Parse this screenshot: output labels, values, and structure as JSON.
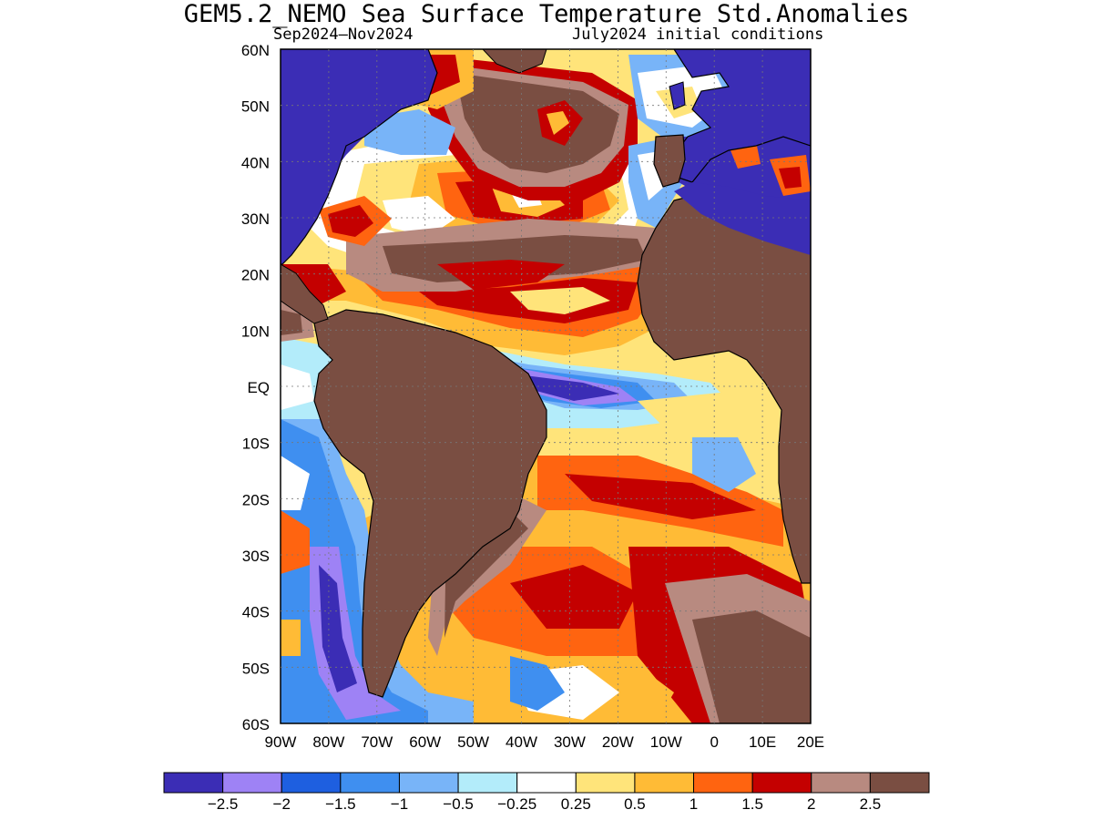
{
  "title": "GEM5.2_NEMO Sea Surface Temperature Std.Anomalies",
  "subtitle_left": "Sep2024—Nov2024",
  "subtitle_right": "July2024 initial conditions",
  "map": {
    "region": "Atlantic Ocean",
    "lat_labels": [
      "60N",
      "50N",
      "40N",
      "30N",
      "20N",
      "10N",
      "EQ",
      "10S",
      "20S",
      "30S",
      "40S",
      "50S",
      "60S"
    ],
    "lon_labels": [
      "90W",
      "80W",
      "70W",
      "60W",
      "50W",
      "40W",
      "30W",
      "20W",
      "10W",
      "0",
      "10E",
      "20E"
    ],
    "lat_range": [
      -60,
      60
    ],
    "lon_range": [
      -90,
      20
    ],
    "gridlines": true,
    "land_color": "#7a4e42"
  },
  "colorbar": {
    "colors": [
      "#3b2db5",
      "#9e82f5",
      "#1e5fe0",
      "#3f8ff0",
      "#78b4f8",
      "#b3ecfa",
      "#ffffff",
      "#ffe47a",
      "#ffbb36",
      "#ff6410",
      "#c40000",
      "#b88a80",
      "#7a4e42"
    ],
    "labels": [
      "−2.5",
      "−2",
      "−1.5",
      "−1",
      "−0.5",
      "−0.25",
      "0.25",
      "0.5",
      "1",
      "1.5",
      "2",
      "2.5"
    ]
  }
}
